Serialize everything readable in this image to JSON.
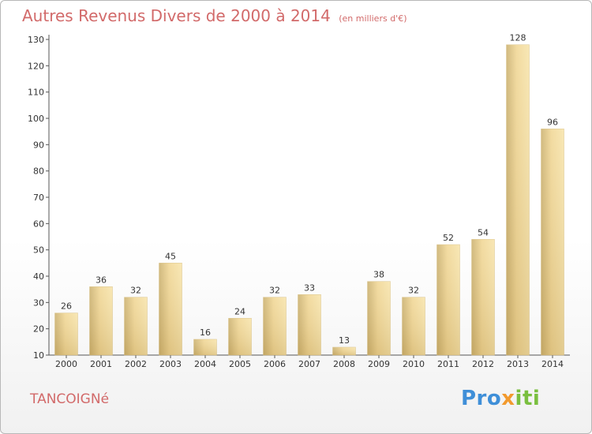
{
  "title": {
    "main": "Autres Revenus Divers de 2000 à 2014",
    "unit": "(en milliers d'€)"
  },
  "commune": "TANCOIGNé",
  "logo": {
    "part1": "Pro",
    "part2": "x",
    "part3": "iti"
  },
  "colors": {
    "title": "#d26a6a",
    "bar_light": "#f5dd9a",
    "bar_dark": "#c9ae6a",
    "axis": "#555555",
    "grid": "#dddddd",
    "logo_blue": "#3f8fd8",
    "logo_orange": "#f29a2e",
    "logo_green": "#7abf3f"
  },
  "chart_data": {
    "type": "bar",
    "categories": [
      "2000",
      "2001",
      "2002",
      "2003",
      "2004",
      "2005",
      "2006",
      "2007",
      "2008",
      "2009",
      "2010",
      "2011",
      "2012",
      "2013",
      "2014"
    ],
    "values": [
      26,
      36,
      32,
      45,
      16,
      24,
      32,
      33,
      13,
      38,
      32,
      52,
      54,
      128,
      96
    ],
    "ylim": [
      10,
      130
    ],
    "yticks": [
      10,
      20,
      30,
      40,
      50,
      60,
      70,
      80,
      90,
      100,
      110,
      120,
      130
    ],
    "data_labels": true,
    "grid": false
  }
}
